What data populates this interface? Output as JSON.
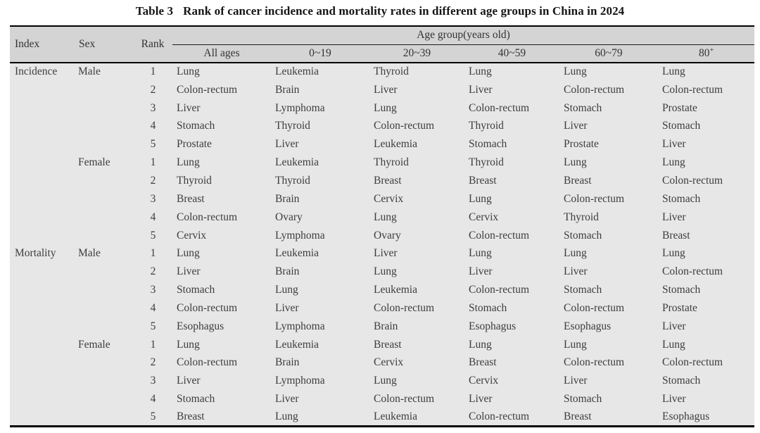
{
  "title": {
    "label": "Table 3",
    "caption": "Rank of cancer incidence and mortality rates in different age groups in China in 2024"
  },
  "colors": {
    "header_background": "#d4d4d4",
    "body_background": "#e7e7e7",
    "rule": "#000000",
    "text": "#3d3d3d"
  },
  "table": {
    "header": {
      "index": "Index",
      "sex": "Sex",
      "rank": "Rank",
      "age_group": "Age group(years old)",
      "age_columns": [
        "All ages",
        "0~19",
        "20~39",
        "40~59",
        "60~79",
        "80"
      ],
      "age_superscript": "+"
    },
    "sections": [
      {
        "index": "Incidence",
        "groups": [
          {
            "sex": "Male",
            "rows": [
              {
                "rank": "1",
                "cells": [
                  "Lung",
                  "Leukemia",
                  "Thyroid",
                  "Lung",
                  "Lung",
                  "Lung"
                ]
              },
              {
                "rank": "2",
                "cells": [
                  "Colon-rectum",
                  "Brain",
                  "Liver",
                  "Liver",
                  "Colon-rectum",
                  "Colon-rectum"
                ]
              },
              {
                "rank": "3",
                "cells": [
                  "Liver",
                  "Lymphoma",
                  "Lung",
                  "Colon-rectum",
                  "Stomach",
                  "Prostate"
                ]
              },
              {
                "rank": "4",
                "cells": [
                  "Stomach",
                  "Thyroid",
                  "Colon-rectum",
                  "Thyroid",
                  "Liver",
                  "Stomach"
                ]
              },
              {
                "rank": "5",
                "cells": [
                  "Prostate",
                  "Liver",
                  "Leukemia",
                  "Stomach",
                  "Prostate",
                  "Liver"
                ]
              }
            ]
          },
          {
            "sex": "Female",
            "rows": [
              {
                "rank": "1",
                "cells": [
                  "Lung",
                  "Leukemia",
                  "Thyroid",
                  "Thyroid",
                  "Lung",
                  "Lung"
                ]
              },
              {
                "rank": "2",
                "cells": [
                  "Thyroid",
                  "Thyroid",
                  "Breast",
                  "Breast",
                  "Breast",
                  "Colon-rectum"
                ]
              },
              {
                "rank": "3",
                "cells": [
                  "Breast",
                  "Brain",
                  "Cervix",
                  "Lung",
                  "Colon-rectum",
                  "Stomach"
                ]
              },
              {
                "rank": "4",
                "cells": [
                  "Colon-rectum",
                  "Ovary",
                  "Lung",
                  "Cervix",
                  "Thyroid",
                  "Liver"
                ]
              },
              {
                "rank": "5",
                "cells": [
                  "Cervix",
                  "Lymphoma",
                  "Ovary",
                  "Colon-rectum",
                  "Stomach",
                  "Breast"
                ]
              }
            ]
          }
        ]
      },
      {
        "index": "Mortality",
        "groups": [
          {
            "sex": "Male",
            "rows": [
              {
                "rank": "1",
                "cells": [
                  "Lung",
                  "Leukemia",
                  "Liver",
                  "Lung",
                  "Lung",
                  "Lung"
                ]
              },
              {
                "rank": "2",
                "cells": [
                  "Liver",
                  "Brain",
                  "Lung",
                  "Liver",
                  "Liver",
                  "Colon-rectum"
                ]
              },
              {
                "rank": "3",
                "cells": [
                  "Stomach",
                  "Lung",
                  "Leukemia",
                  "Colon-rectum",
                  "Stomach",
                  "Stomach"
                ]
              },
              {
                "rank": "4",
                "cells": [
                  "Colon-rectum",
                  "Liver",
                  "Colon-rectum",
                  "Stomach",
                  "Colon-rectum",
                  "Prostate"
                ]
              },
              {
                "rank": "5",
                "cells": [
                  "Esophagus",
                  "Lymphoma",
                  "Brain",
                  "Esophagus",
                  "Esophagus",
                  "Liver"
                ]
              }
            ]
          },
          {
            "sex": "Female",
            "rows": [
              {
                "rank": "1",
                "cells": [
                  "Lung",
                  "Leukemia",
                  "Breast",
                  "Lung",
                  "Lung",
                  "Lung"
                ]
              },
              {
                "rank": "2",
                "cells": [
                  "Colon-rectum",
                  "Brain",
                  "Cervix",
                  "Breast",
                  "Colon-rectum",
                  "Colon-rectum"
                ]
              },
              {
                "rank": "3",
                "cells": [
                  "Liver",
                  "Lymphoma",
                  "Lung",
                  "Cervix",
                  "Liver",
                  "Stomach"
                ]
              },
              {
                "rank": "4",
                "cells": [
                  "Stomach",
                  "Liver",
                  "Colon-rectum",
                  "Liver",
                  "Stomach",
                  "Liver"
                ]
              },
              {
                "rank": "5",
                "cells": [
                  "Breast",
                  "Lung",
                  "Leukemia",
                  "Colon-rectum",
                  "Breast",
                  "Esophagus"
                ]
              }
            ]
          }
        ]
      }
    ]
  }
}
